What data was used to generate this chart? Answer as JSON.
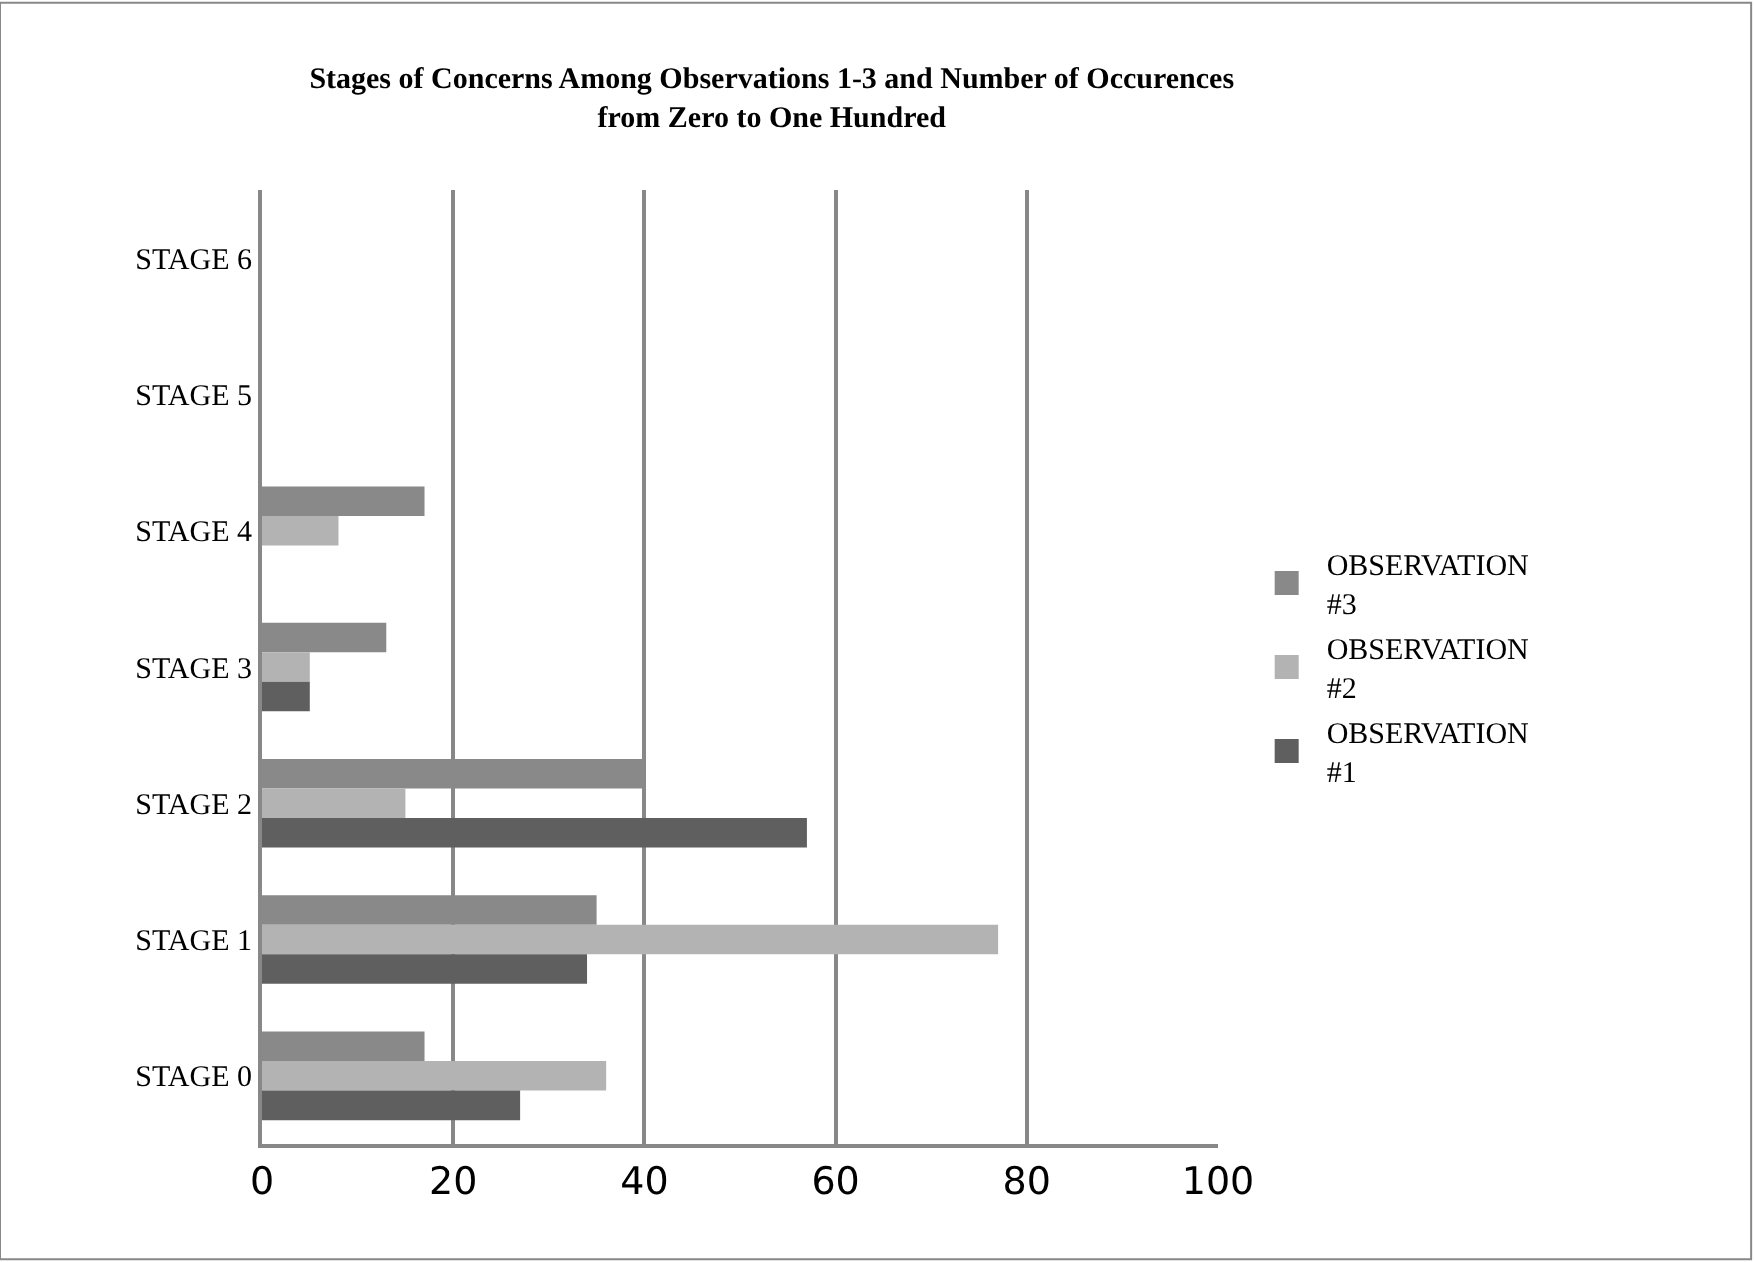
{
  "chart_data": {
    "type": "bar",
    "orientation": "horizontal",
    "title": "Stages of Concerns Among Observations 1-3 and Number of Occurences from Zero to One Hundred",
    "categories": [
      "STAGE 6",
      "STAGE 5",
      "STAGE 4",
      "STAGE 3",
      "STAGE 2",
      "STAGE 1",
      "STAGE 0"
    ],
    "series": [
      {
        "name": "OBSERVATION #3",
        "color": "#898989",
        "values": [
          null,
          null,
          17,
          13,
          40,
          35,
          17
        ]
      },
      {
        "name": "OBSERVATION #2",
        "color": "#b3b3b3",
        "values": [
          null,
          null,
          8,
          5,
          15,
          77,
          36
        ]
      },
      {
        "name": "OBSERVATION #1",
        "color": "#5f5f5f",
        "values": [
          null,
          null,
          null,
          5,
          57,
          34,
          27
        ]
      }
    ],
    "xlim": [
      0,
      100
    ],
    "xticks": [
      0,
      20,
      40,
      60,
      80,
      100
    ],
    "grid": "x",
    "legend": "right"
  }
}
